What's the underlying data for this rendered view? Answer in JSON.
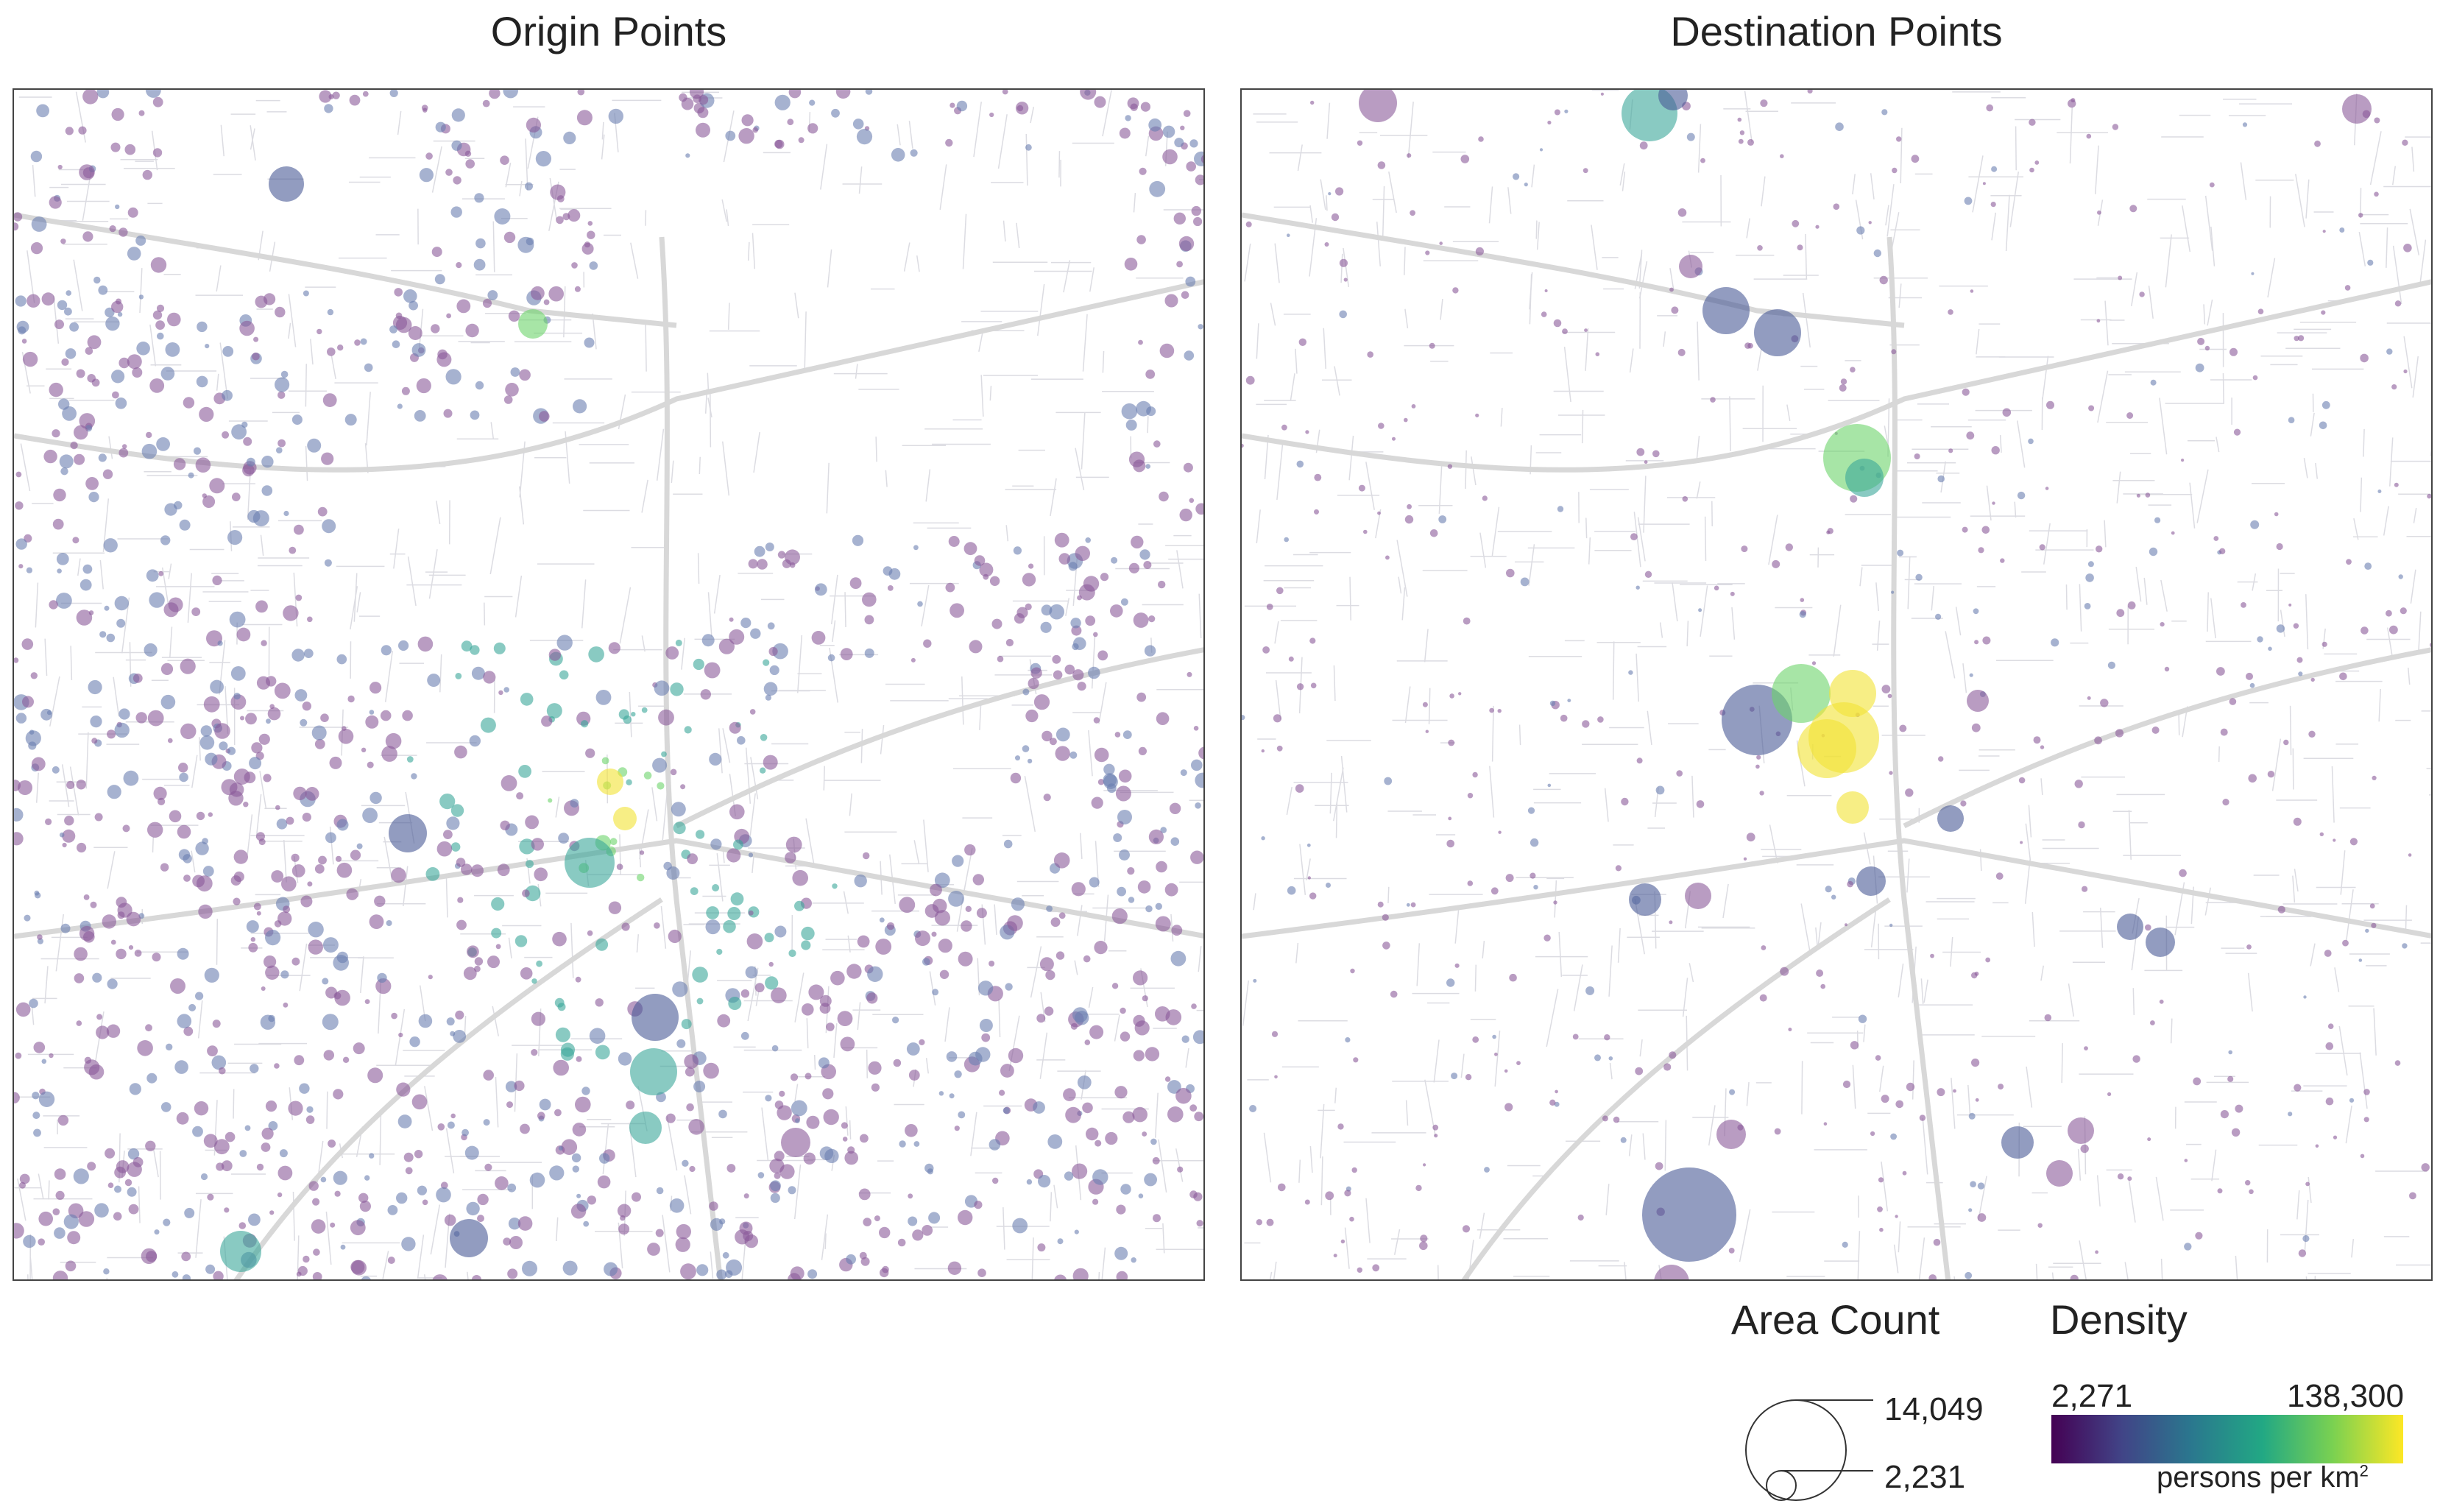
{
  "titles": {
    "left": "Origin Points",
    "right": "Destination Points"
  },
  "legend": {
    "area_count": {
      "title": "Area Count",
      "max_label": "14,049",
      "min_label": "2,231"
    },
    "density": {
      "title": "Density",
      "min_label": "2,271",
      "max_label": "138,300",
      "unit": "persons per km",
      "unit_sup": "2"
    },
    "colormap": [
      "#440154",
      "#414487",
      "#2a788e",
      "#22a884",
      "#7ad151",
      "#fde725"
    ]
  },
  "style": {
    "bubble_opacity": 0.6,
    "road_color": "#d8d8d8",
    "frame_color": "#444444"
  }
}
